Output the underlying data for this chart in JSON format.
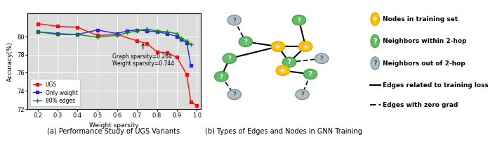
{
  "ugs_x": [
    0.2,
    0.3,
    0.4,
    0.5,
    0.6,
    0.7,
    0.75,
    0.8,
    0.85,
    0.9,
    0.95,
    0.97,
    1.0
  ],
  "ugs_y": [
    81.4,
    81.1,
    81.0,
    80.1,
    80.2,
    79.5,
    79.2,
    78.3,
    78.2,
    77.7,
    75.8,
    72.8,
    72.4
  ],
  "only_weight_x": [
    0.2,
    0.3,
    0.4,
    0.5,
    0.6,
    0.65,
    0.7,
    0.75,
    0.8,
    0.85,
    0.9,
    0.92,
    0.95,
    0.97
  ],
  "only_weight_y": [
    80.5,
    80.3,
    80.2,
    80.7,
    80.3,
    80.6,
    80.7,
    80.6,
    80.5,
    80.3,
    80.0,
    79.7,
    79.3,
    76.8
  ],
  "edges_80_x": [
    0.2,
    0.3,
    0.4,
    0.5,
    0.6,
    0.65,
    0.7,
    0.75,
    0.8,
    0.85,
    0.9,
    0.92,
    0.95,
    0.97
  ],
  "edges_80_y": [
    80.5,
    80.2,
    80.2,
    79.9,
    80.1,
    80.4,
    80.6,
    80.8,
    80.6,
    80.5,
    80.3,
    79.8,
    79.5,
    79.1
  ],
  "annotation_text": "Graph sparsity=0.264\nWeight sparsity=0.744",
  "xlabel": "Weight sparsity",
  "ylabel": "Accuracy(%)",
  "ylim": [
    72,
    82.5
  ],
  "xlim": [
    0.15,
    1.02
  ],
  "yticks": [
    72,
    74,
    76,
    78,
    80
  ],
  "xticks": [
    0.2,
    0.3,
    0.4,
    0.5,
    0.6,
    0.7,
    0.8,
    0.9,
    1.0
  ],
  "ugs_color": "#EE1111",
  "only_weight_color": "#2222EE",
  "edges_80_color": "#118811",
  "caption_left": "(a) Performance Study of UGS Variants",
  "caption_right": "(b) Types of Edges and Nodes in GNN Training",
  "bg_color": "#DCDCDC",
  "node_gold_color": "#FFC107",
  "node_green_color": "#66BB6A",
  "node_gray_color": "#B0BEC5",
  "node_gold_edge": "#E0A800",
  "node_green_edge": "#43A047",
  "node_gray_edge": "#78909C",
  "legend_node_labels": [
    "Nodes in training set",
    "Neighbors within 2-hop",
    "Neighbors out of 2-hop"
  ],
  "legend_edge_labels": [
    "Edges related to training loss",
    "Edges with zero grad"
  ]
}
